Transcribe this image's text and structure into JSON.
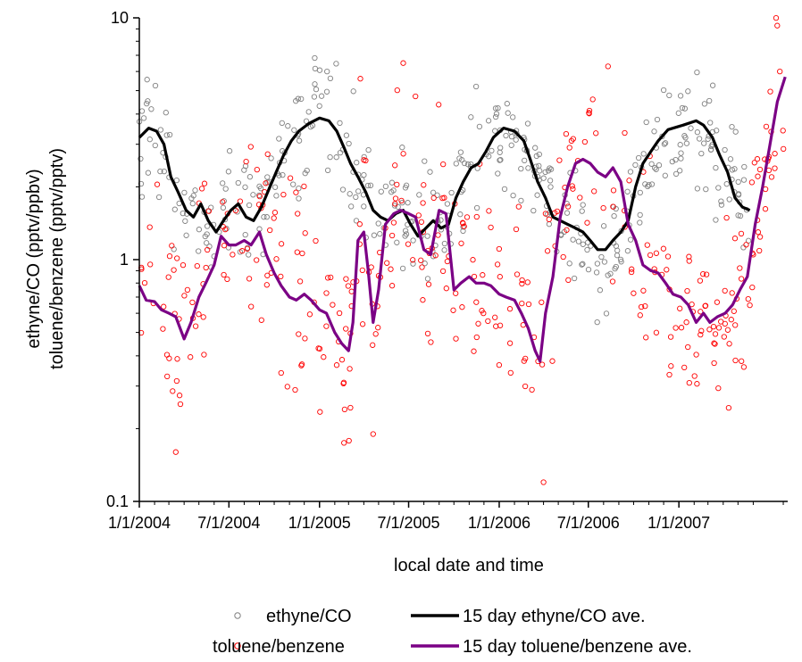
{
  "chart_data": {
    "type": "scatter",
    "title": "",
    "xlabel": "local date and time",
    "ylabel_lines": [
      "ethyne/CO (pptv/ppbv)",
      "toluene/benzene (pptv/pptv)"
    ],
    "yscale": "log",
    "ylim": [
      0.1,
      10
    ],
    "xlim": [
      "2004-01-01",
      "2007-08-10"
    ],
    "y_ticks": [
      {
        "value": 0.1,
        "label": "0.1"
      },
      {
        "value": 1,
        "label": "1"
      },
      {
        "value": 10,
        "label": "10"
      }
    ],
    "x_ticks": [
      {
        "value": "2004-01-01",
        "label": "1/1/2004"
      },
      {
        "value": "2004-07-01",
        "label": "7/1/2004"
      },
      {
        "value": "2005-01-01",
        "label": "1/1/2005"
      },
      {
        "value": "2005-07-01",
        "label": "7/1/2005"
      },
      {
        "value": "2006-01-01",
        "label": "1/1/2006"
      },
      {
        "value": "2006-07-01",
        "label": "7/1/2006"
      },
      {
        "value": "2007-01-01",
        "label": "1/1/2007"
      }
    ],
    "grid": false,
    "legend_position": "bottom",
    "legend": [
      {
        "label": "ethyne/CO",
        "kind": "marker",
        "color": "#808080"
      },
      {
        "label": "15 day ethyne/CO ave.",
        "kind": "line",
        "color": "#000000"
      },
      {
        "label": "toluene/benzene",
        "kind": "marker",
        "color": "#ff0000"
      },
      {
        "label": "15 day toluene/benzene ave.",
        "kind": "line",
        "color": "#7b0085"
      }
    ],
    "series": [
      {
        "name": "15 day ethyne/CO ave.",
        "type": "line",
        "color": "#000000",
        "points": [
          [
            "2004-01-01",
            3.2
          ],
          [
            "2004-01-20",
            3.5
          ],
          [
            "2004-02-05",
            3.4
          ],
          [
            "2004-02-20",
            3.0
          ],
          [
            "2004-03-05",
            2.2
          ],
          [
            "2004-03-20",
            1.9
          ],
          [
            "2004-04-05",
            1.6
          ],
          [
            "2004-04-20",
            1.5
          ],
          [
            "2004-05-05",
            1.7
          ],
          [
            "2004-05-20",
            1.45
          ],
          [
            "2004-06-05",
            1.3
          ],
          [
            "2004-06-20",
            1.45
          ],
          [
            "2004-07-05",
            1.6
          ],
          [
            "2004-07-20",
            1.7
          ],
          [
            "2004-08-05",
            1.5
          ],
          [
            "2004-08-20",
            1.45
          ],
          [
            "2004-09-05",
            1.65
          ],
          [
            "2004-09-20",
            1.95
          ],
          [
            "2004-10-05",
            2.3
          ],
          [
            "2004-10-20",
            2.7
          ],
          [
            "2004-11-05",
            3.1
          ],
          [
            "2004-11-20",
            3.4
          ],
          [
            "2004-12-10",
            3.65
          ],
          [
            "2005-01-01",
            3.85
          ],
          [
            "2005-01-20",
            3.75
          ],
          [
            "2005-02-05",
            3.4
          ],
          [
            "2005-02-20",
            2.9
          ],
          [
            "2005-03-05",
            2.5
          ],
          [
            "2005-03-20",
            2.2
          ],
          [
            "2005-04-05",
            1.9
          ],
          [
            "2005-04-20",
            1.6
          ],
          [
            "2005-05-05",
            1.5
          ],
          [
            "2005-05-20",
            1.45
          ],
          [
            "2005-06-05",
            1.55
          ],
          [
            "2005-06-20",
            1.6
          ],
          [
            "2005-07-05",
            1.4
          ],
          [
            "2005-07-20",
            1.25
          ],
          [
            "2005-08-05",
            1.35
          ],
          [
            "2005-08-20",
            1.45
          ],
          [
            "2005-09-05",
            1.35
          ],
          [
            "2005-09-20",
            1.4
          ],
          [
            "2005-10-05",
            1.8
          ],
          [
            "2005-10-20",
            2.1
          ],
          [
            "2005-11-05",
            2.4
          ],
          [
            "2005-11-20",
            2.5
          ],
          [
            "2005-12-05",
            2.8
          ],
          [
            "2005-12-20",
            3.2
          ],
          [
            "2006-01-10",
            3.5
          ],
          [
            "2006-02-01",
            3.4
          ],
          [
            "2006-02-20",
            3.1
          ],
          [
            "2006-03-05",
            2.6
          ],
          [
            "2006-03-20",
            2.1
          ],
          [
            "2006-04-05",
            1.8
          ],
          [
            "2006-04-20",
            1.5
          ],
          [
            "2006-05-05",
            1.45
          ],
          [
            "2006-05-20",
            1.4
          ],
          [
            "2006-06-05",
            1.35
          ],
          [
            "2006-06-20",
            1.3
          ],
          [
            "2006-07-05",
            1.2
          ],
          [
            "2006-07-20",
            1.1
          ],
          [
            "2006-08-05",
            1.1
          ],
          [
            "2006-08-20",
            1.2
          ],
          [
            "2006-09-05",
            1.3
          ],
          [
            "2006-09-20",
            1.45
          ],
          [
            "2006-10-05",
            2.0
          ],
          [
            "2006-10-20",
            2.5
          ],
          [
            "2006-11-05",
            2.8
          ],
          [
            "2006-11-20",
            3.1
          ],
          [
            "2006-12-10",
            3.45
          ],
          [
            "2007-01-10",
            3.6
          ],
          [
            "2007-02-05",
            3.75
          ],
          [
            "2007-02-20",
            3.6
          ],
          [
            "2007-03-10",
            3.2
          ],
          [
            "2007-03-25",
            2.7
          ],
          [
            "2007-04-10",
            2.3
          ],
          [
            "2007-04-25",
            1.8
          ],
          [
            "2007-05-10",
            1.65
          ],
          [
            "2007-05-25",
            1.6
          ]
        ]
      },
      {
        "name": "15 day toluene/benzene ave.",
        "type": "line",
        "color": "#7b0085",
        "points": [
          [
            "2004-01-01",
            0.78
          ],
          [
            "2004-01-15",
            0.68
          ],
          [
            "2004-02-01",
            0.67
          ],
          [
            "2004-02-15",
            0.62
          ],
          [
            "2004-03-01",
            0.6
          ],
          [
            "2004-03-15",
            0.58
          ],
          [
            "2004-04-01",
            0.47
          ],
          [
            "2004-04-15",
            0.55
          ],
          [
            "2004-05-01",
            0.7
          ],
          [
            "2004-05-15",
            0.8
          ],
          [
            "2004-06-01",
            0.95
          ],
          [
            "2004-06-15",
            1.25
          ],
          [
            "2004-07-01",
            1.15
          ],
          [
            "2004-07-15",
            1.15
          ],
          [
            "2004-08-01",
            1.2
          ],
          [
            "2004-08-15",
            1.15
          ],
          [
            "2004-09-01",
            1.3
          ],
          [
            "2004-09-15",
            1.05
          ],
          [
            "2004-10-01",
            0.88
          ],
          [
            "2004-10-15",
            0.78
          ],
          [
            "2004-11-01",
            0.7
          ],
          [
            "2004-11-15",
            0.68
          ],
          [
            "2004-12-01",
            0.72
          ],
          [
            "2004-12-15",
            0.68
          ],
          [
            "2005-01-01",
            0.62
          ],
          [
            "2005-01-15",
            0.6
          ],
          [
            "2005-02-01",
            0.5
          ],
          [
            "2005-02-15",
            0.45
          ],
          [
            "2005-03-01",
            0.42
          ],
          [
            "2005-03-10",
            0.55
          ],
          [
            "2005-03-20",
            1.2
          ],
          [
            "2005-04-01",
            1.3
          ],
          [
            "2005-04-10",
            0.9
          ],
          [
            "2005-04-20",
            0.55
          ],
          [
            "2005-05-01",
            0.75
          ],
          [
            "2005-05-15",
            1.4
          ],
          [
            "2005-06-01",
            1.55
          ],
          [
            "2005-06-15",
            1.6
          ],
          [
            "2005-07-01",
            1.55
          ],
          [
            "2005-07-15",
            1.5
          ],
          [
            "2005-08-01",
            1.1
          ],
          [
            "2005-08-15",
            1.05
          ],
          [
            "2005-09-01",
            1.6
          ],
          [
            "2005-09-15",
            1.55
          ],
          [
            "2005-10-01",
            0.75
          ],
          [
            "2005-10-15",
            0.8
          ],
          [
            "2005-11-01",
            0.85
          ],
          [
            "2005-11-15",
            0.8
          ],
          [
            "2005-12-01",
            0.8
          ],
          [
            "2005-12-15",
            0.78
          ],
          [
            "2006-01-01",
            0.72
          ],
          [
            "2006-01-15",
            0.7
          ],
          [
            "2006-02-01",
            0.68
          ],
          [
            "2006-02-15",
            0.6
          ],
          [
            "2006-03-01",
            0.52
          ],
          [
            "2006-03-15",
            0.42
          ],
          [
            "2006-03-25",
            0.38
          ],
          [
            "2006-04-05",
            0.6
          ],
          [
            "2006-04-20",
            0.85
          ],
          [
            "2006-05-05",
            1.5
          ],
          [
            "2006-05-20",
            2.0
          ],
          [
            "2006-06-05",
            2.5
          ],
          [
            "2006-06-20",
            2.6
          ],
          [
            "2006-07-05",
            2.5
          ],
          [
            "2006-07-20",
            2.3
          ],
          [
            "2006-08-05",
            2.2
          ],
          [
            "2006-08-20",
            2.4
          ],
          [
            "2006-09-05",
            2.1
          ],
          [
            "2006-09-20",
            1.4
          ],
          [
            "2006-10-05",
            1.2
          ],
          [
            "2006-10-20",
            0.95
          ],
          [
            "2006-11-05",
            0.9
          ],
          [
            "2006-11-20",
            0.88
          ],
          [
            "2006-12-05",
            0.8
          ],
          [
            "2006-12-20",
            0.72
          ],
          [
            "2007-01-05",
            0.7
          ],
          [
            "2007-01-20",
            0.65
          ],
          [
            "2007-02-05",
            0.55
          ],
          [
            "2007-02-20",
            0.6
          ],
          [
            "2007-03-05",
            0.55
          ],
          [
            "2007-03-20",
            0.58
          ],
          [
            "2007-04-05",
            0.6
          ],
          [
            "2007-04-20",
            0.65
          ],
          [
            "2007-05-05",
            0.75
          ],
          [
            "2007-05-20",
            0.85
          ],
          [
            "2007-06-05",
            1.4
          ],
          [
            "2007-06-20",
            2.0
          ],
          [
            "2007-07-05",
            3.0
          ],
          [
            "2007-07-20",
            4.5
          ],
          [
            "2007-08-05",
            5.7
          ]
        ]
      }
    ],
    "scatter_series": [
      {
        "name": "ethyne/CO",
        "color": "#808080",
        "follows": "15 day ethyne/CO ave.",
        "spread": 0.12,
        "count": 420
      },
      {
        "name": "toluene/benzene",
        "color": "#ff0000",
        "follows": "15 day toluene/benzene ave.",
        "spread": 0.2,
        "count": 380
      }
    ],
    "scatter_outliers": [
      {
        "x": "2005-06-20",
        "y": 6.5,
        "series": "toluene/benzene"
      },
      {
        "x": "2006-08-10",
        "y": 6.3,
        "series": "toluene/benzene"
      },
      {
        "x": "2005-03-25",
        "y": 5.6,
        "series": "toluene/benzene"
      },
      {
        "x": "2004-03-15",
        "y": 0.16,
        "series": "toluene/benzene"
      },
      {
        "x": "2006-04-01",
        "y": 0.12,
        "series": "toluene/benzene"
      },
      {
        "x": "2005-04-20",
        "y": 0.19,
        "series": "toluene/benzene"
      },
      {
        "x": "2007-07-25",
        "y": 6.0,
        "series": "toluene/benzene"
      },
      {
        "x": "2005-11-15",
        "y": 5.2,
        "series": "ethyne/CO"
      }
    ]
  }
}
